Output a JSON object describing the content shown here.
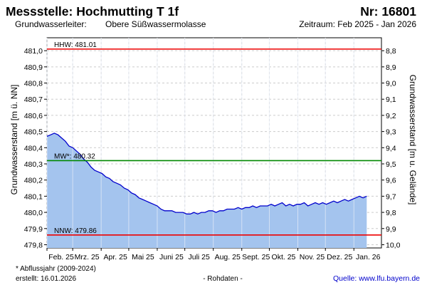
{
  "header": {
    "title": "Messstelle: Hochmutting T 1f",
    "number": "Nr: 16801",
    "aquifer_label": "Grundwasserleiter:",
    "aquifer_value": "Obere Süßwassermolasse",
    "period": "Zeitraum: Feb 2025 - Jan 2026"
  },
  "footer": {
    "footnote": "* Abflussjahr (2009-2024)",
    "created": "erstellt:  16.01.2026",
    "rawdata": "- Rohdaten -",
    "source": "Quelle: www.lfu.bayern.de"
  },
  "colors": {
    "fill": "#a4c4ee",
    "line": "#0000cc",
    "hhw": "#ee0000",
    "mw": "#008800",
    "nnw": "#ee0000",
    "source_link": "#0000cc"
  },
  "chart_data": {
    "type": "area",
    "xlabel": "",
    "ylabel": "Grundwasserstand [m ü. NN]",
    "ylabel_right": "Grundwasserstand [m u. Gelände]",
    "xlim": [
      "2025-02-01",
      "2026-01-31"
    ],
    "ylim": [
      479.78,
      481.08
    ],
    "right_axis_offset": 489.8,
    "grid": true,
    "x_ticks": [
      {
        "date": "2025-02-01",
        "label": "Feb. 25"
      },
      {
        "date": "2025-03-01",
        "label": "Mrz. 25"
      },
      {
        "date": "2025-04-01",
        "label": "Apr. 25"
      },
      {
        "date": "2025-05-01",
        "label": "Mai 25"
      },
      {
        "date": "2025-06-01",
        "label": "Juni 25"
      },
      {
        "date": "2025-07-01",
        "label": "Juli 25"
      },
      {
        "date": "2025-08-01",
        "label": "Aug. 25"
      },
      {
        "date": "2025-09-01",
        "label": "Sept. 25"
      },
      {
        "date": "2025-10-01",
        "label": "Okt. 25"
      },
      {
        "date": "2025-11-01",
        "label": "Nov. 25"
      },
      {
        "date": "2025-12-01",
        "label": "Dez. 25"
      },
      {
        "date": "2026-01-01",
        "label": "Jan. 26"
      }
    ],
    "y_ticks": [
      {
        "value": 481.0,
        "label": "481,0"
      },
      {
        "value": 480.9,
        "label": "480,9"
      },
      {
        "value": 480.8,
        "label": "480,8"
      },
      {
        "value": 480.7,
        "label": "480,7"
      },
      {
        "value": 480.6,
        "label": "480,6"
      },
      {
        "value": 480.5,
        "label": "480,5"
      },
      {
        "value": 480.4,
        "label": "480,4"
      },
      {
        "value": 480.3,
        "label": "480,3"
      },
      {
        "value": 480.2,
        "label": "480,2"
      },
      {
        "value": 480.1,
        "label": "480,1"
      },
      {
        "value": 480.0,
        "label": "480,0"
      },
      {
        "value": 479.9,
        "label": "479,9"
      },
      {
        "value": 479.8,
        "label": "479,8"
      }
    ],
    "y_ticks_right": [
      {
        "value": 8.8,
        "label": "8,8"
      },
      {
        "value": 8.9,
        "label": "8,9"
      },
      {
        "value": 9.0,
        "label": "9,0"
      },
      {
        "value": 9.1,
        "label": "9,1"
      },
      {
        "value": 9.2,
        "label": "9,2"
      },
      {
        "value": 9.3,
        "label": "9,3"
      },
      {
        "value": 9.4,
        "label": "9,4"
      },
      {
        "value": 9.5,
        "label": "9,5"
      },
      {
        "value": 9.6,
        "label": "9,6"
      },
      {
        "value": 9.7,
        "label": "9,7"
      },
      {
        "value": 9.8,
        "label": "9,8"
      },
      {
        "value": 9.9,
        "label": "9,9"
      },
      {
        "value": 10.0,
        "label": "10,0"
      }
    ],
    "reference_lines": [
      {
        "key": "hhw",
        "label": "HHW: 481.01",
        "value": 481.01
      },
      {
        "key": "mw",
        "label": "MW*: 480.32",
        "value": 480.32
      },
      {
        "key": "nnw",
        "label": "NNW: 479.86",
        "value": 479.86
      }
    ],
    "series": [
      {
        "x": [
          "2025-02-01",
          "2025-02-05",
          "2025-02-09",
          "2025-02-13",
          "2025-02-17",
          "2025-02-21",
          "2025-02-25",
          "2025-03-01",
          "2025-03-05",
          "2025-03-09",
          "2025-03-13",
          "2025-03-17",
          "2025-03-21",
          "2025-03-25",
          "2025-03-29",
          "2025-04-02",
          "2025-04-06",
          "2025-04-10",
          "2025-04-14",
          "2025-04-18",
          "2025-04-22",
          "2025-04-26",
          "2025-04-30",
          "2025-05-04",
          "2025-05-08",
          "2025-05-12",
          "2025-05-16",
          "2025-05-20",
          "2025-05-24",
          "2025-05-28",
          "2025-06-01",
          "2025-06-05",
          "2025-06-09",
          "2025-06-13",
          "2025-06-17",
          "2025-06-21",
          "2025-06-25",
          "2025-06-29",
          "2025-07-03",
          "2025-07-07",
          "2025-07-11",
          "2025-07-15",
          "2025-07-19",
          "2025-07-23",
          "2025-07-27",
          "2025-07-31",
          "2025-08-04",
          "2025-08-08",
          "2025-08-12",
          "2025-08-16",
          "2025-08-20",
          "2025-08-24",
          "2025-08-28",
          "2025-09-01",
          "2025-09-05",
          "2025-09-09",
          "2025-09-13",
          "2025-09-17",
          "2025-09-21",
          "2025-09-25",
          "2025-09-29",
          "2025-10-03",
          "2025-10-07",
          "2025-10-11",
          "2025-10-15",
          "2025-10-19",
          "2025-10-23",
          "2025-10-27",
          "2025-10-31",
          "2025-11-04",
          "2025-11-08",
          "2025-11-12",
          "2025-11-16",
          "2025-11-20",
          "2025-11-24",
          "2025-11-28",
          "2025-12-02",
          "2025-12-06",
          "2025-12-10",
          "2025-12-14",
          "2025-12-18",
          "2025-12-22",
          "2025-12-26",
          "2025-12-30",
          "2026-01-03",
          "2026-01-07",
          "2026-01-11",
          "2026-01-15"
        ],
        "y": [
          480.47,
          480.48,
          480.49,
          480.48,
          480.46,
          480.44,
          480.41,
          480.4,
          480.38,
          480.36,
          480.33,
          480.31,
          480.28,
          480.26,
          480.25,
          480.24,
          480.22,
          480.21,
          480.19,
          480.18,
          480.17,
          480.15,
          480.14,
          480.12,
          480.11,
          480.09,
          480.08,
          480.07,
          480.06,
          480.05,
          480.04,
          480.02,
          480.01,
          480.01,
          480.01,
          480.0,
          480.0,
          480.0,
          479.99,
          479.99,
          480.0,
          479.99,
          480.0,
          480.0,
          480.01,
          480.01,
          480.0,
          480.01,
          480.01,
          480.02,
          480.02,
          480.02,
          480.03,
          480.02,
          480.03,
          480.03,
          480.04,
          480.03,
          480.04,
          480.04,
          480.04,
          480.05,
          480.04,
          480.05,
          480.06,
          480.04,
          480.05,
          480.04,
          480.05,
          480.05,
          480.06,
          480.04,
          480.05,
          480.06,
          480.05,
          480.06,
          480.05,
          480.06,
          480.07,
          480.06,
          480.07,
          480.08,
          480.07,
          480.08,
          480.09,
          480.1,
          480.09,
          480.1
        ]
      }
    ]
  }
}
